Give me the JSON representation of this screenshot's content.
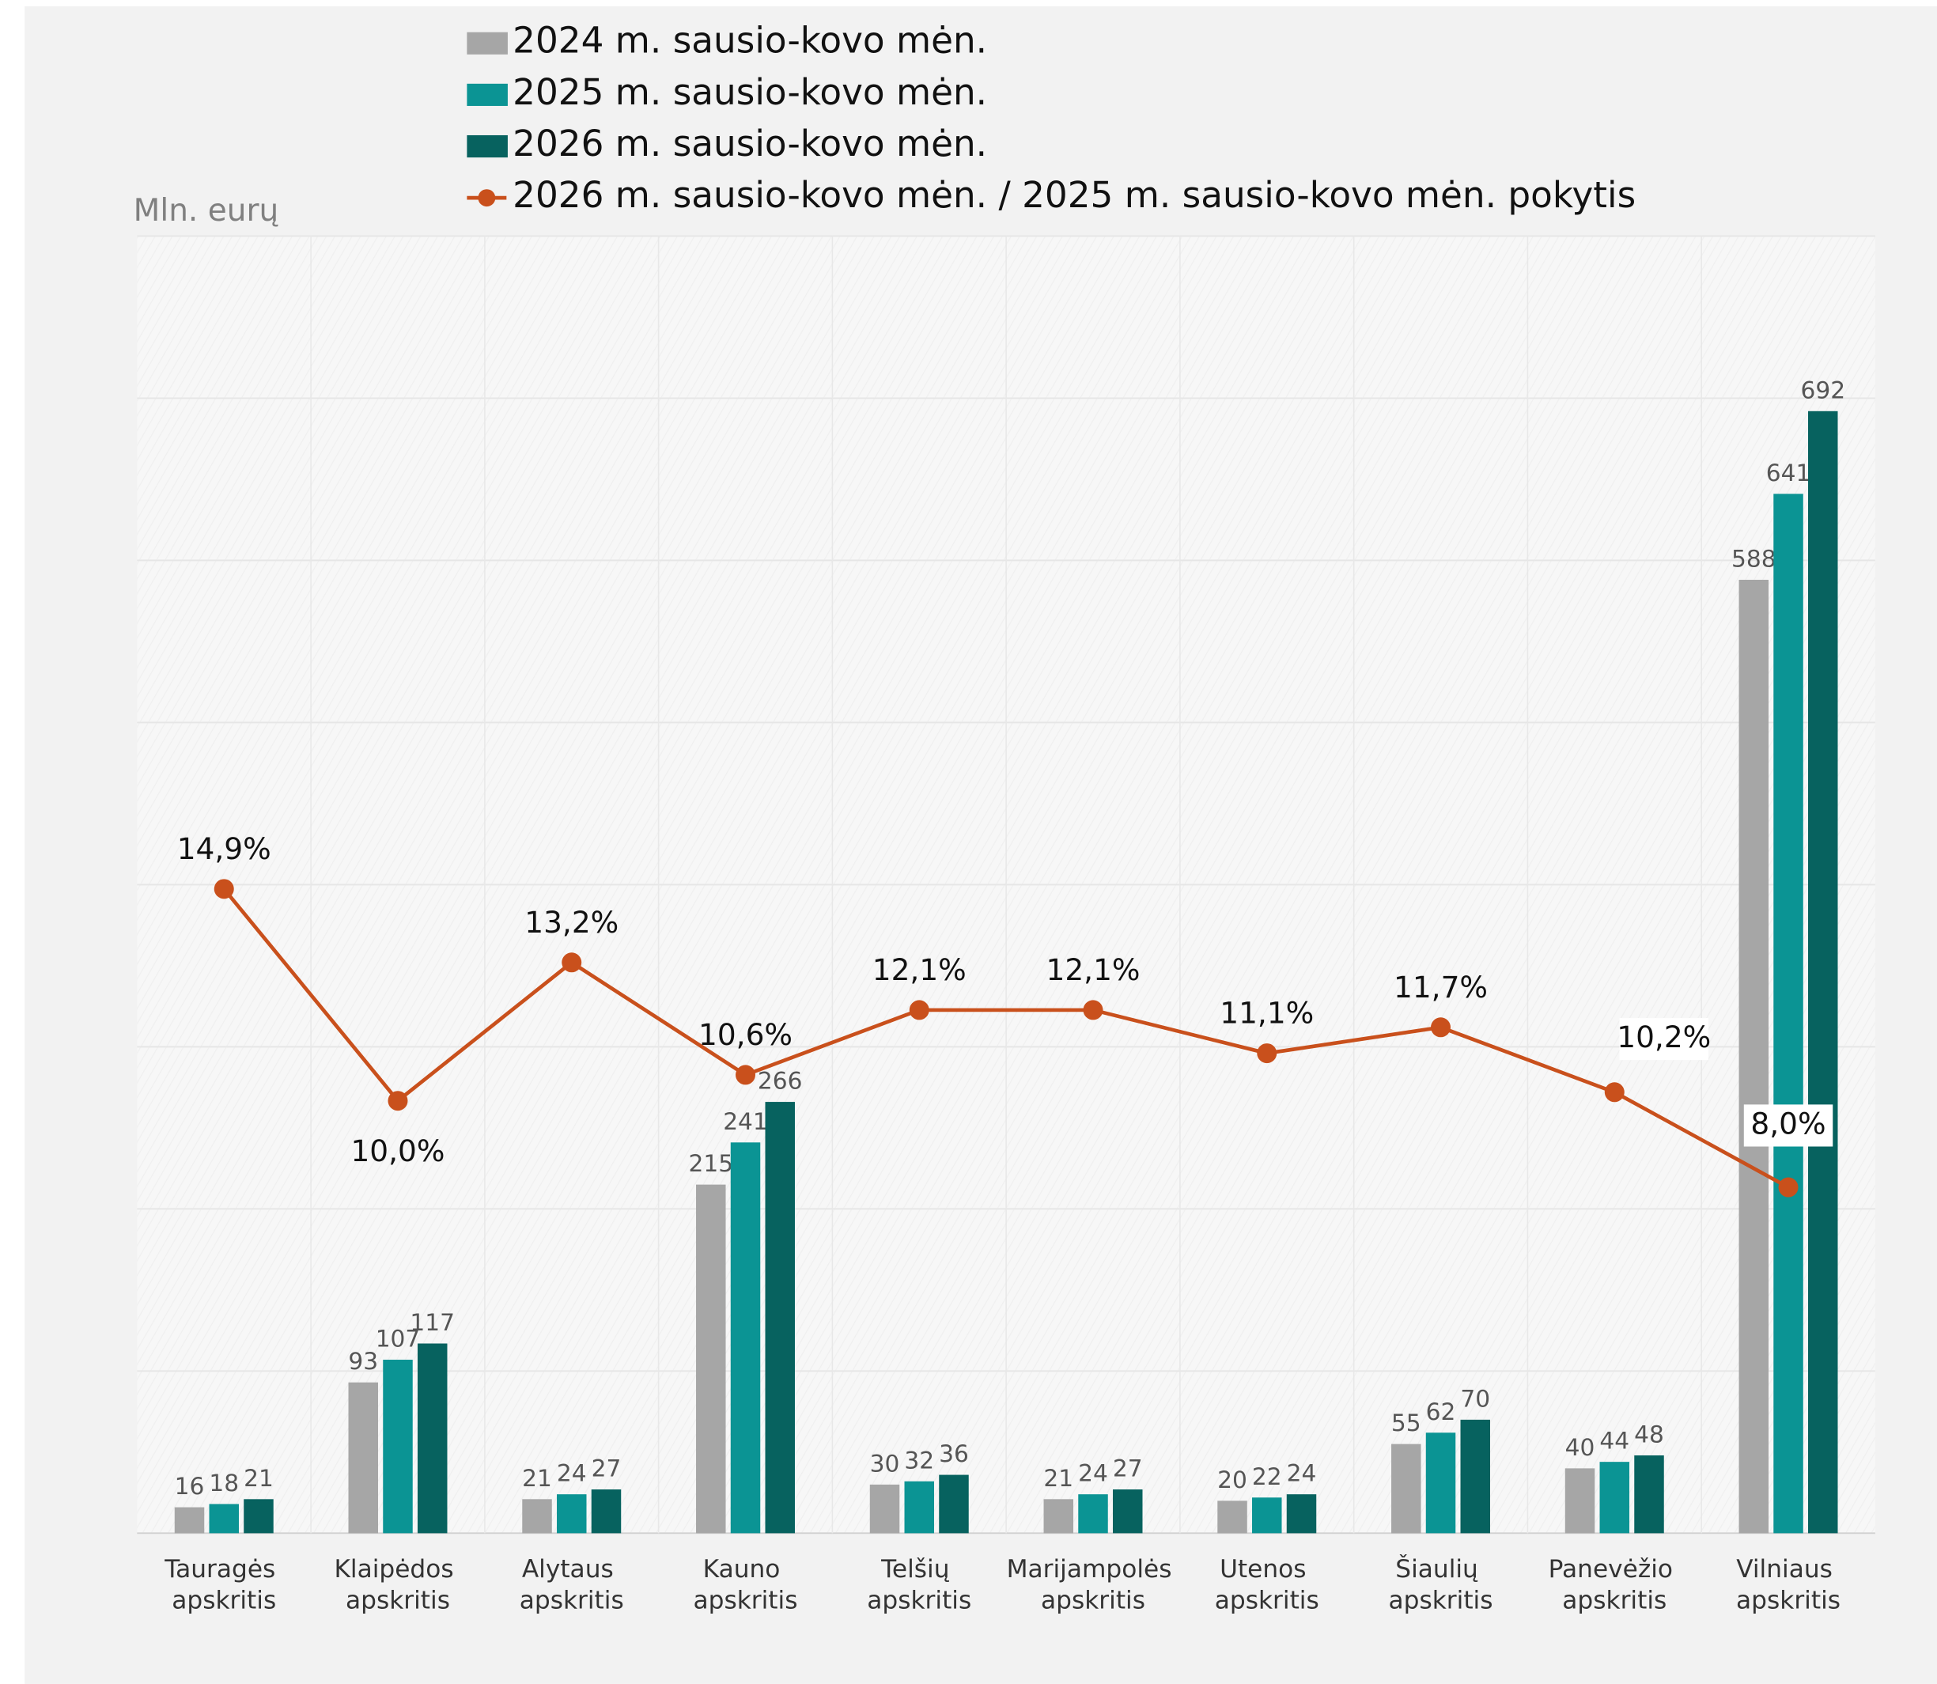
{
  "chart_data": {
    "type": "bar_line",
    "y_axis_label": "Mln. eurų",
    "categories": [
      "Tauragės apskritis",
      "Klaipėdos apskritis",
      "Alytaus apskritis",
      "Kauno apskritis",
      "Telšių apskritis",
      "Marijampolės apskritis",
      "Utenos apskritis",
      "Šiaulių apskritis",
      "Panevėžio apskritis",
      "Vilniaus apskritis"
    ],
    "series": [
      {
        "name": "2024 m. sausio-kovo mėn.",
        "color": "#a6a6a6",
        "values": [
          16,
          93,
          21,
          215,
          30,
          21,
          20,
          55,
          40,
          588
        ]
      },
      {
        "name": "2025 m. sausio-kovo mėn.",
        "color": "#0b9494",
        "values": [
          18,
          107,
          24,
          241,
          32,
          24,
          22,
          62,
          44,
          641
        ]
      },
      {
        "name": "2026 m. sausio-kovo mėn.",
        "color": "#07625f",
        "values": [
          21,
          117,
          27,
          266,
          36,
          27,
          24,
          70,
          48,
          692
        ]
      },
      {
        "name": "2026 m. sausio-kovo mėn. / 2025 m. sausio-kovo mėn. pokytis",
        "color": "#c9501c",
        "type": "line",
        "axis": "y2",
        "values": [
          14.9,
          10.0,
          13.2,
          10.6,
          12.1,
          12.1,
          11.1,
          11.7,
          10.2,
          8.0
        ],
        "value_labels": [
          "14,9%",
          "10,0%",
          "13,2%",
          "10,6%",
          "12,1%",
          "12,1%",
          "11,1%",
          "11,7%",
          "10,2%",
          "8,0%"
        ]
      }
    ],
    "ylim": [
      0,
      800
    ],
    "yticks": [
      0,
      100,
      200,
      300,
      400,
      500,
      600,
      700,
      800
    ],
    "y2lim": [
      0,
      30
    ],
    "grid": true
  }
}
